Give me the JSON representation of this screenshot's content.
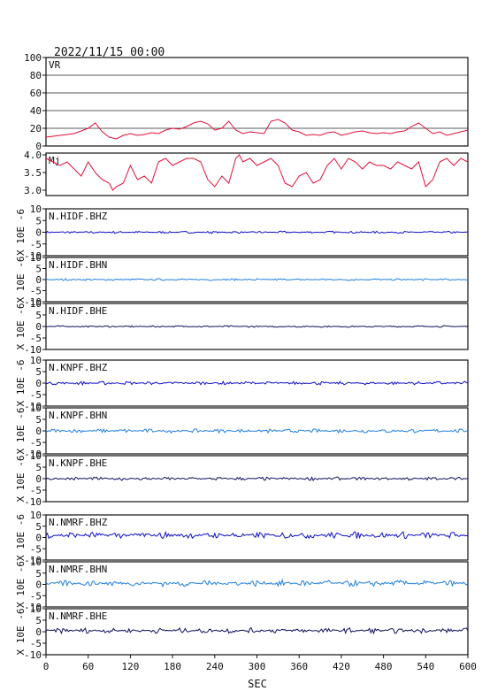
{
  "figure": {
    "timestamp": "2022/11/15 00:00",
    "xlabel": "SEC",
    "xticks": [
      0,
      60,
      120,
      180,
      240,
      300,
      360,
      420,
      480,
      540,
      600
    ],
    "xlim": [
      0,
      600
    ]
  },
  "colors": {
    "frame": "#111111",
    "grid": "#222222",
    "red": "#e0103a",
    "blue": "#1010c8",
    "cyan": "#2080e0",
    "navy": "#101060"
  },
  "chart_data": [
    {
      "type": "line",
      "label": "VR",
      "ylim": [
        0,
        100
      ],
      "yticks": [
        0,
        20,
        40,
        60,
        80,
        100
      ],
      "grid": true,
      "color": "red",
      "series": [
        {
          "x": [
            0,
            20,
            40,
            60,
            70,
            80,
            90,
            100,
            110,
            120,
            130,
            140,
            150,
            160,
            170,
            180,
            190,
            200,
            210,
            220,
            230,
            240,
            250,
            260,
            270,
            280,
            290,
            300,
            310,
            320,
            330,
            340,
            350,
            360,
            370,
            380,
            390,
            400,
            410,
            420,
            430,
            440,
            450,
            460,
            470,
            480,
            490,
            500,
            510,
            520,
            530,
            540,
            550,
            560,
            570,
            580,
            590,
            600
          ],
          "y": [
            10,
            12,
            14,
            20,
            26,
            16,
            10,
            8,
            12,
            14,
            12,
            13,
            15,
            14,
            18,
            20,
            19,
            22,
            26,
            28,
            25,
            18,
            20,
            28,
            18,
            14,
            16,
            15,
            14,
            28,
            30,
            26,
            18,
            16,
            12,
            13,
            12,
            15,
            16,
            12,
            14,
            16,
            17,
            15,
            14,
            15,
            14,
            16,
            17,
            22,
            26,
            20,
            14,
            16,
            12,
            14,
            16,
            18
          ]
        }
      ]
    },
    {
      "type": "line",
      "label": "Mj",
      "ylim": [
        2.85,
        4.05
      ],
      "yticks": [
        3.0,
        3.5,
        4.0
      ],
      "ytick_labels": [
        "3.0",
        "3.5",
        "4.0"
      ],
      "grid": false,
      "color": "red",
      "series": [
        {
          "x": [
            0,
            10,
            20,
            30,
            40,
            50,
            60,
            70,
            80,
            90,
            95,
            100,
            110,
            120,
            130,
            140,
            150,
            160,
            170,
            180,
            190,
            200,
            210,
            220,
            230,
            240,
            250,
            260,
            270,
            275,
            280,
            290,
            300,
            310,
            320,
            330,
            340,
            350,
            360,
            370,
            380,
            390,
            400,
            410,
            420,
            430,
            440,
            450,
            460,
            470,
            480,
            490,
            500,
            510,
            520,
            530,
            540,
            550,
            560,
            570,
            580,
            590,
            600
          ],
          "y": [
            3.9,
            3.8,
            3.7,
            3.8,
            3.6,
            3.4,
            3.8,
            3.5,
            3.3,
            3.2,
            3.0,
            3.1,
            3.2,
            3.7,
            3.3,
            3.4,
            3.2,
            3.8,
            3.9,
            3.7,
            3.8,
            3.9,
            3.9,
            3.8,
            3.3,
            3.1,
            3.4,
            3.2,
            3.9,
            4.0,
            3.8,
            3.9,
            3.7,
            3.8,
            3.9,
            3.7,
            3.2,
            3.1,
            3.4,
            3.5,
            3.2,
            3.3,
            3.7,
            3.9,
            3.6,
            3.9,
            3.8,
            3.6,
            3.8,
            3.7,
            3.7,
            3.6,
            3.8,
            3.7,
            3.6,
            3.8,
            3.1,
            3.3,
            3.8,
            3.9,
            3.7,
            3.9,
            3.8
          ]
        }
      ]
    },
    {
      "type": "line",
      "label": "N.HIDF.BHZ",
      "color": "blue",
      "ylim": [
        -10,
        10
      ],
      "yticks": [
        -10,
        -5,
        0,
        5,
        10
      ],
      "ylabel": "X 10E -6",
      "series": [
        {
          "amplitude": 0.5,
          "offset": 0,
          "rate_per_sec": 0.5
        }
      ]
    },
    {
      "type": "line",
      "label": "N.HIDF.BHN",
      "color": "cyan",
      "ylim": [
        -10,
        10
      ],
      "yticks": [
        -10,
        -5,
        0,
        5,
        10
      ],
      "ylabel": "X 10E -6",
      "series": [
        {
          "amplitude": 0.5,
          "offset": 0,
          "rate_per_sec": 0.5
        }
      ]
    },
    {
      "type": "line",
      "label": "N.HIDF.BHE",
      "color": "navy",
      "ylim": [
        -10,
        10
      ],
      "yticks": [
        -10,
        -5,
        0,
        5,
        10
      ],
      "ylabel": "X 10E -6",
      "series": [
        {
          "amplitude": 0.4,
          "offset": 0,
          "rate_per_sec": 0.5
        }
      ]
    },
    {
      "type": "line",
      "label": "N.KNPF.BHZ",
      "color": "blue",
      "ylim": [
        -10,
        10
      ],
      "yticks": [
        -10,
        -5,
        0,
        5,
        10
      ],
      "ylabel": "X 10E -6",
      "series": [
        {
          "amplitude": 0.8,
          "offset": 0,
          "rate_per_sec": 0.5
        }
      ]
    },
    {
      "type": "line",
      "label": "N.KNPF.BHN",
      "color": "cyan",
      "ylim": [
        -10,
        10
      ],
      "yticks": [
        -10,
        -5,
        0,
        5,
        10
      ],
      "ylabel": "X 10E -6",
      "series": [
        {
          "amplitude": 0.9,
          "offset": 0,
          "rate_per_sec": 0.5
        }
      ]
    },
    {
      "type": "line",
      "label": "N.KNPF.BHE",
      "color": "navy",
      "ylim": [
        -10,
        10
      ],
      "yticks": [
        -10,
        -5,
        0,
        5,
        10
      ],
      "ylabel": "X 10E -6",
      "series": [
        {
          "amplitude": 0.8,
          "offset": 0,
          "rate_per_sec": 0.5
        }
      ]
    },
    {
      "type": "line",
      "label": "N.NMRF.BHZ",
      "color": "blue",
      "ylim": [
        -10,
        10
      ],
      "yticks": [
        -10,
        -5,
        0,
        5,
        10
      ],
      "ylabel": "X 10E -6",
      "series": [
        {
          "amplitude": 1.6,
          "offset": 1,
          "rate_per_sec": 0.5
        }
      ]
    },
    {
      "type": "line",
      "label": "N.NMRF.BHN",
      "color": "cyan",
      "ylim": [
        -10,
        10
      ],
      "yticks": [
        -10,
        -5,
        0,
        5,
        10
      ],
      "ylabel": "X 10E -6",
      "series": [
        {
          "amplitude": 1.5,
          "offset": 0.5,
          "rate_per_sec": 0.5
        }
      ]
    },
    {
      "type": "line",
      "label": "N.NMRF.BHE",
      "color": "navy",
      "ylim": [
        -10,
        10
      ],
      "yticks": [
        -10,
        -5,
        0,
        5,
        10
      ],
      "ylabel": "X 10E -6",
      "series": [
        {
          "amplitude": 1.2,
          "offset": 0.5,
          "rate_per_sec": 0.5
        }
      ]
    }
  ]
}
